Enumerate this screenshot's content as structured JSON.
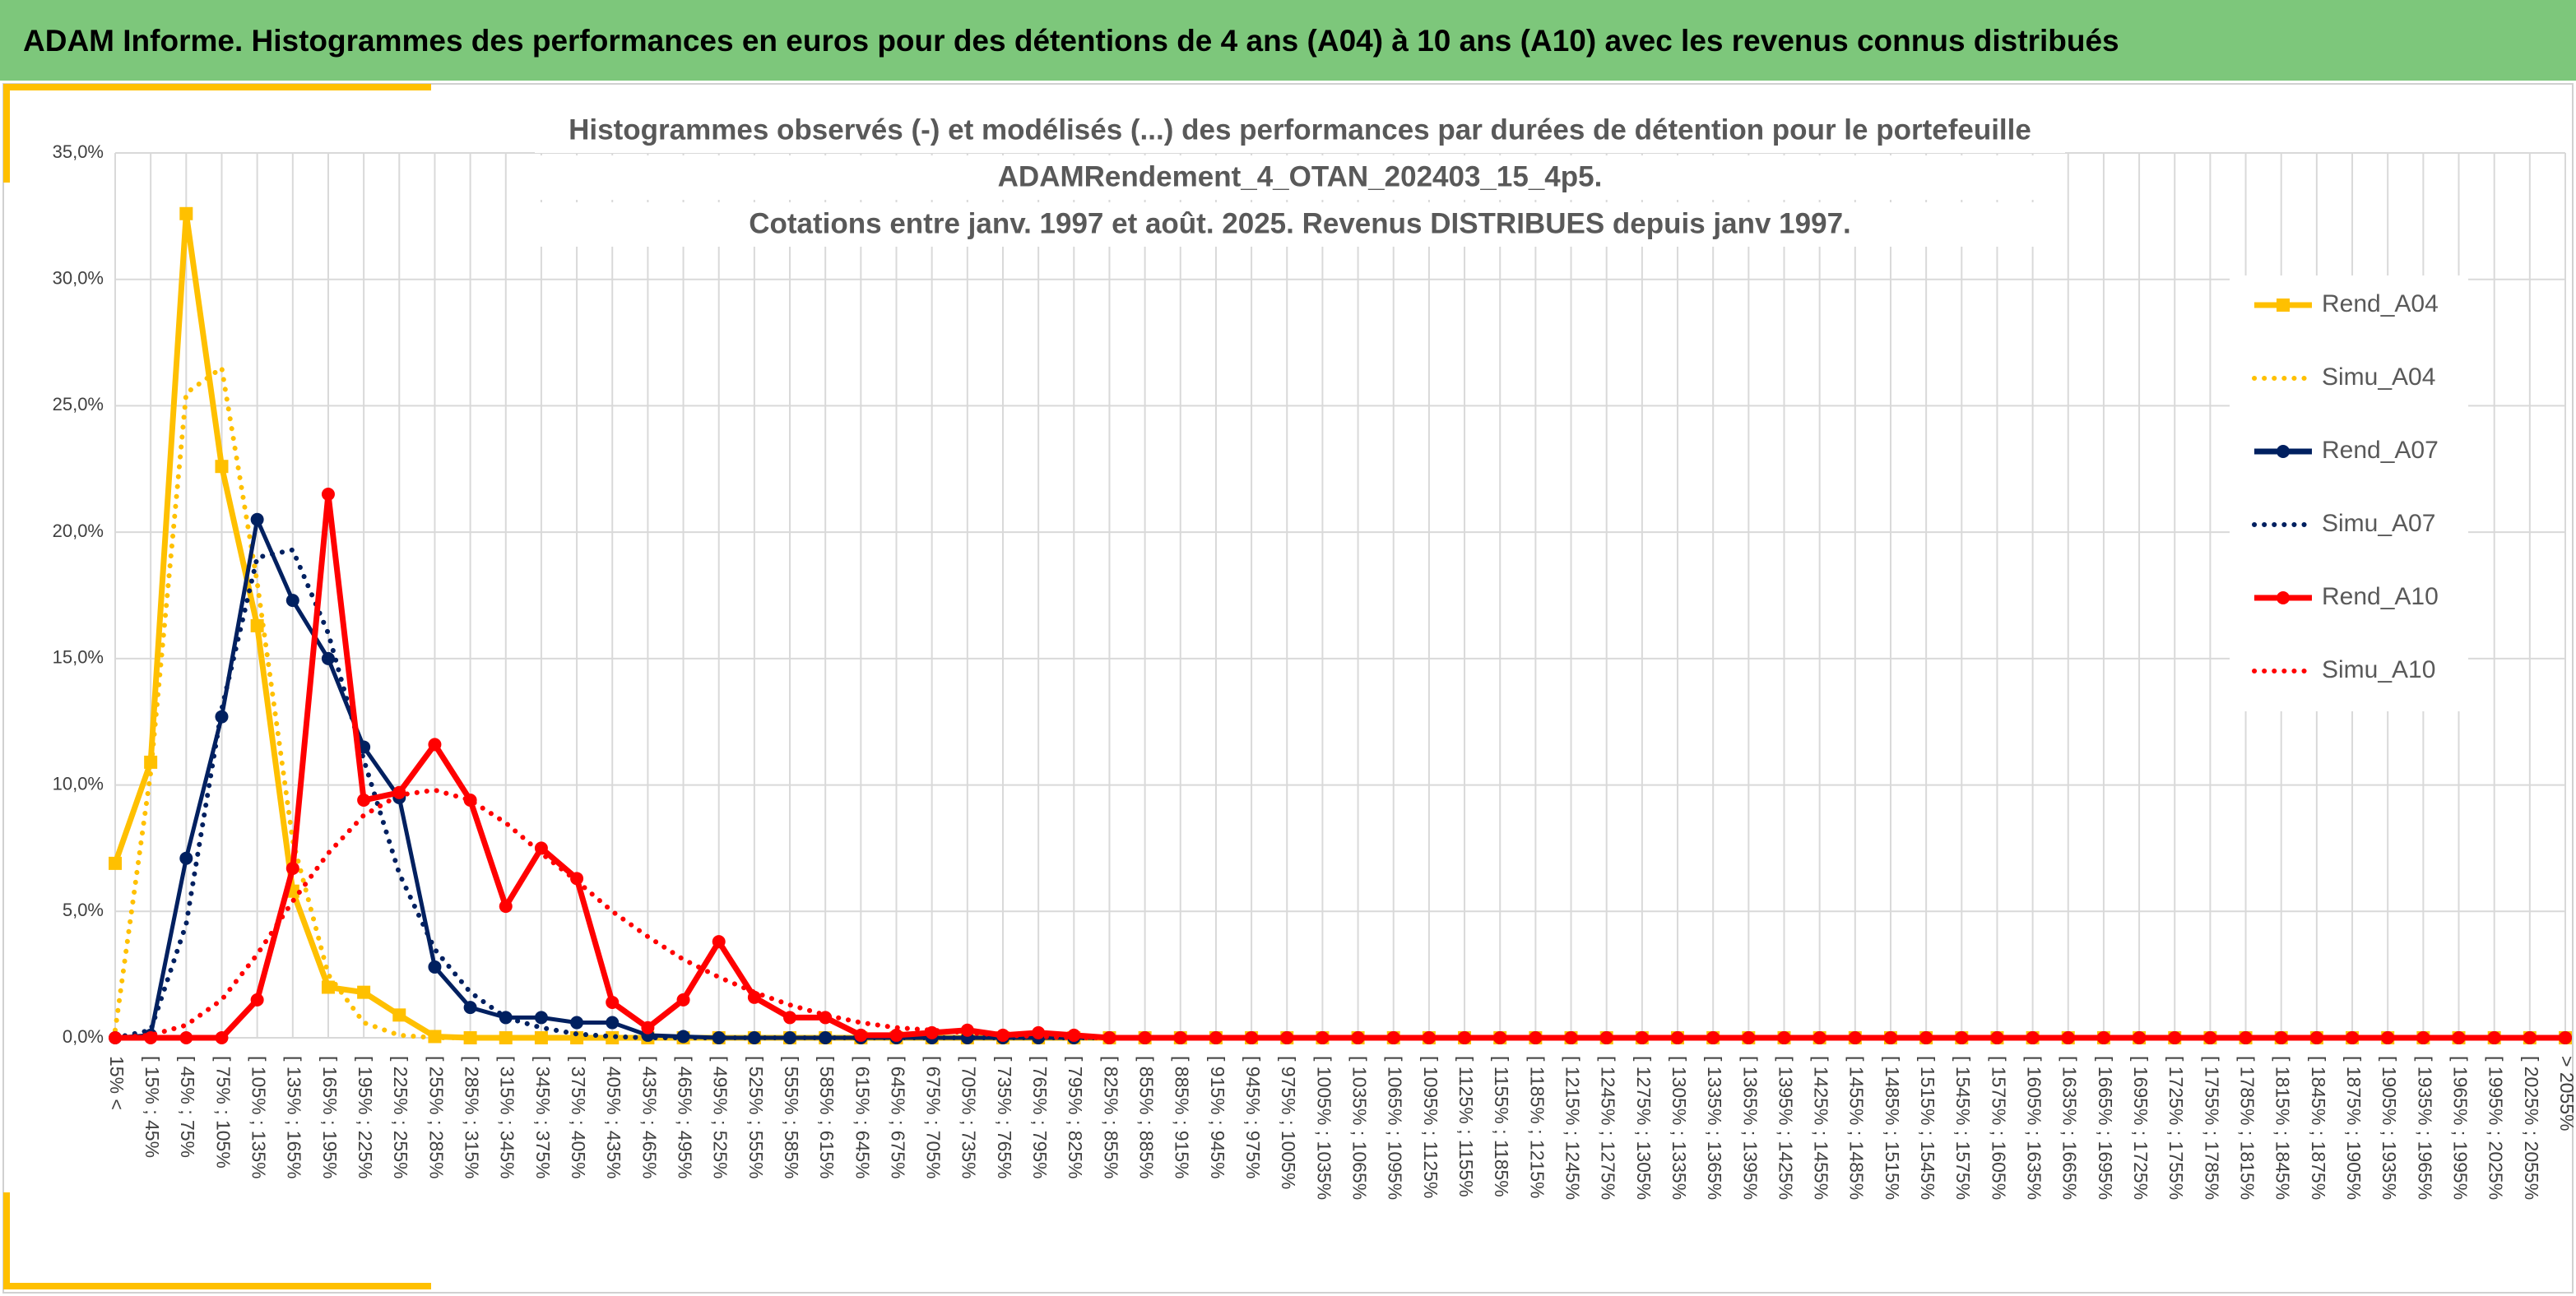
{
  "header": "ADAM Informe. Histogrammes des performances en euros pour des détentions de 4 ans (A04) à 10 ans (A10) avec les revenus connus distribués",
  "chart_data": {
    "type": "line",
    "title": [
      "Histogrammes observés (-) et modélisés (...) des performances par durées de détention pour le portefeuille",
      "ADAMRendement_4_OTAN_202403_15_4p5.",
      "Cotations entre janv. 1997 et août. 2025. Revenus DISTRIBUES depuis janv 1997."
    ],
    "categories": [
      "15% <",
      "[ 15% ; 45%",
      "[ 45% ; 75%",
      "[ 75% ; 105%",
      "[ 105% ; 135%",
      "[ 135% ; 165%",
      "[ 165% ; 195%",
      "[ 195% ; 225%",
      "[ 225% ; 255%",
      "[ 255% ; 285%",
      "[ 285% ; 315%",
      "[ 315% ; 345%",
      "[ 345% ; 375%",
      "[ 375% ; 405%",
      "[ 405% ; 435%",
      "[ 435% ; 465%",
      "[ 465% ; 495%",
      "[ 495% ; 525%",
      "[ 525% ; 555%",
      "[ 555% ; 585%",
      "[ 585% ; 615%",
      "[ 615% ; 645%",
      "[ 645% ; 675%",
      "[ 675% ; 705%",
      "[ 705% ; 735%",
      "[ 735% ; 765%",
      "[ 765% ; 795%",
      "[ 795% ; 825%",
      "[ 825% ; 855%",
      "[ 855% ; 885%",
      "[ 885% ; 915%",
      "[ 915% ; 945%",
      "[ 945% ; 975%",
      "[ 975% ; 1005%",
      "[ 1005% ; 1035%",
      "[ 1035% ; 1065%",
      "[ 1065% ; 1095%",
      "[ 1095% ; 1125%",
      "[ 1125% ; 1155%",
      "[ 1155% ; 1185%",
      "[ 1185% ; 1215%",
      "[ 1215% ; 1245%",
      "[ 1245% ; 1275%",
      "[ 1275% ; 1305%",
      "[ 1305% ; 1335%",
      "[ 1335% ; 1365%",
      "[ 1365% ; 1395%",
      "[ 1395% ; 1425%",
      "[ 1425% ; 1455%",
      "[ 1455% ; 1485%",
      "[ 1485% ; 1515%",
      "[ 1515% ; 1545%",
      "[ 1545% ; 1575%",
      "[ 1575% ; 1605%",
      "[ 1605% ; 1635%",
      "[ 1635% ; 1665%",
      "[ 1665% ; 1695%",
      "[ 1695% ; 1725%",
      "[ 1725% ; 1755%",
      "[ 1755% ; 1785%",
      "[ 1785% ; 1815%",
      "[ 1815% ; 1845%",
      "[ 1845% ; 1875%",
      "[ 1875% ; 1905%",
      "[ 1905% ; 1935%",
      "[ 1935% ; 1965%",
      "[ 1965% ; 1995%",
      "[ 1995% ; 2025%",
      "[ 2025% ; 2055%",
      "> 2055%"
    ],
    "series": [
      {
        "name": "Rend_A04",
        "color": "#ffc000",
        "dash": "solid",
        "marker": "square",
        "values": [
          6.9,
          10.9,
          32.6,
          22.6,
          16.3,
          5.8,
          2.0,
          1.8,
          0.9,
          0.05,
          0,
          0,
          0,
          0,
          0,
          0,
          0,
          0,
          0,
          0,
          0,
          0,
          0,
          0,
          0,
          0,
          0,
          0,
          0,
          0,
          0,
          0,
          0,
          0,
          0,
          0,
          0,
          0,
          0,
          0,
          0,
          0,
          0,
          0,
          0,
          0,
          0,
          0,
          0,
          0,
          0,
          0,
          0,
          0,
          0,
          0,
          0,
          0,
          0,
          0,
          0,
          0,
          0,
          0,
          0,
          0,
          0,
          0,
          0,
          0
        ]
      },
      {
        "name": "Simu_A04",
        "color": "#ffc000",
        "dash": "dotted",
        "marker": null,
        "values": [
          0.3,
          10.5,
          25.5,
          26.5,
          18,
          7.8,
          2.5,
          0.6,
          0.1,
          0,
          0,
          0,
          0,
          0,
          0,
          0,
          0,
          0,
          0,
          0,
          0,
          0,
          0,
          0,
          0,
          0,
          0,
          0,
          0,
          0,
          0,
          0,
          0,
          0,
          0,
          0,
          0,
          0,
          0,
          0,
          0,
          0,
          0,
          0,
          0,
          0,
          0,
          0,
          0,
          0,
          0,
          0,
          0,
          0,
          0,
          0,
          0,
          0,
          0,
          0,
          0,
          0,
          0,
          0,
          0,
          0,
          0,
          0,
          0,
          0
        ]
      },
      {
        "name": "Rend_A07",
        "color": "#002060",
        "dash": "solid",
        "marker": "circle",
        "values": [
          0,
          0.1,
          7.1,
          12.7,
          20.5,
          17.3,
          15.0,
          11.5,
          9.5,
          2.8,
          1.2,
          0.8,
          0.8,
          0.6,
          0.6,
          0.1,
          0.05,
          0,
          0,
          0,
          0,
          0,
          0,
          0,
          0,
          0,
          0,
          0,
          0,
          0,
          0,
          0,
          0,
          0,
          0,
          0,
          0,
          0,
          0,
          0,
          0,
          0,
          0,
          0,
          0,
          0,
          0,
          0,
          0,
          0,
          0,
          0,
          0,
          0,
          0,
          0,
          0,
          0,
          0,
          0,
          0,
          0,
          0,
          0,
          0,
          0,
          0,
          0,
          0,
          0
        ]
      },
      {
        "name": "Simu_A07",
        "color": "#002060",
        "dash": "dotted",
        "marker": null,
        "values": [
          0,
          0.3,
          4.5,
          13,
          19,
          19.3,
          16,
          11,
          6.5,
          3.5,
          1.8,
          0.8,
          0.4,
          0.15,
          0.05,
          0,
          0,
          0,
          0,
          0,
          0,
          0,
          0,
          0,
          0,
          0,
          0,
          0,
          0,
          0,
          0,
          0,
          0,
          0,
          0,
          0,
          0,
          0,
          0,
          0,
          0,
          0,
          0,
          0,
          0,
          0,
          0,
          0,
          0,
          0,
          0,
          0,
          0,
          0,
          0,
          0,
          0,
          0,
          0,
          0,
          0,
          0,
          0,
          0,
          0,
          0,
          0,
          0,
          0,
          0
        ]
      },
      {
        "name": "Rend_A10",
        "color": "#ff0000",
        "dash": "solid",
        "marker": "circle",
        "values": [
          0,
          0,
          0,
          0,
          1.5,
          6.7,
          21.5,
          9.4,
          9.7,
          11.6,
          9.4,
          5.2,
          7.5,
          6.3,
          1.4,
          0.4,
          1.5,
          3.8,
          1.6,
          0.8,
          0.8,
          0.1,
          0.1,
          0.2,
          0.3,
          0.1,
          0.2,
          0.1,
          0,
          0,
          0,
          0,
          0,
          0,
          0,
          0,
          0,
          0,
          0,
          0,
          0,
          0,
          0,
          0,
          0,
          0,
          0,
          0,
          0,
          0,
          0,
          0,
          0,
          0,
          0,
          0,
          0,
          0,
          0,
          0,
          0,
          0,
          0,
          0,
          0,
          0,
          0,
          0,
          0,
          0
        ]
      },
      {
        "name": "Simu_A10",
        "color": "#ff0000",
        "dash": "dotted",
        "marker": null,
        "values": [
          0,
          0.1,
          0.5,
          1.5,
          3.3,
          5.4,
          7.3,
          8.8,
          9.6,
          9.8,
          9.4,
          8.5,
          7.3,
          6.2,
          5.0,
          4.0,
          3.1,
          2.4,
          1.8,
          1.3,
          0.9,
          0.6,
          0.4,
          0.3,
          0.2,
          0.1,
          0.05,
          0,
          0,
          0,
          0,
          0,
          0,
          0,
          0,
          0,
          0,
          0,
          0,
          0,
          0,
          0,
          0,
          0,
          0,
          0,
          0,
          0,
          0,
          0,
          0,
          0,
          0,
          0,
          0,
          0,
          0,
          0,
          0,
          0,
          0,
          0,
          0,
          0,
          0,
          0,
          0,
          0,
          0,
          0
        ]
      }
    ],
    "ylim": [
      0,
      35
    ],
    "yticks": [
      {
        "value": 0,
        "label": "0,0%"
      },
      {
        "value": 5,
        "label": "5,0%"
      },
      {
        "value": 10,
        "label": "10,0%"
      },
      {
        "value": 15,
        "label": "15,0%"
      },
      {
        "value": 20,
        "label": "20,0%"
      },
      {
        "value": 25,
        "label": "25,0%"
      },
      {
        "value": 30,
        "label": "30,0%"
      },
      {
        "value": 35,
        "label": "35,0%"
      }
    ],
    "grid": true,
    "legend": "right"
  }
}
